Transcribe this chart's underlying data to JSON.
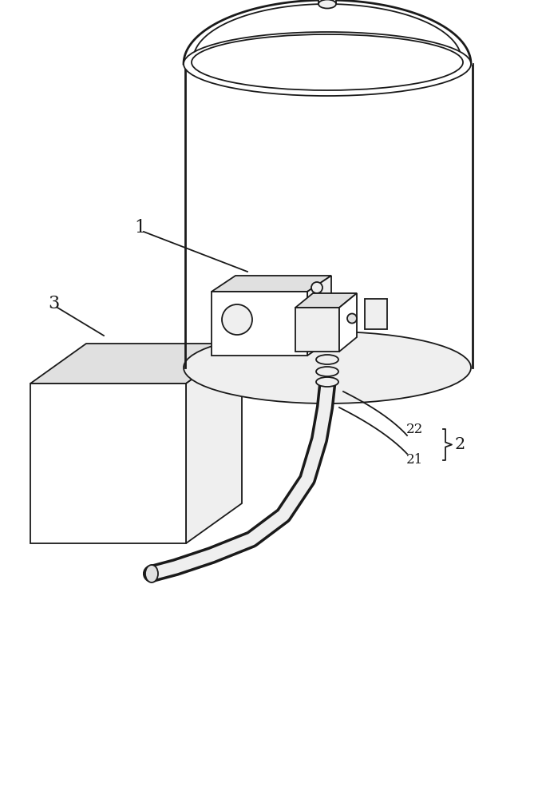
{
  "bg_color": "#ffffff",
  "line_color": "#1a1a1a",
  "fill_white": "#ffffff",
  "fill_light": "#efefef",
  "fill_mid": "#e0e0e0",
  "fill_dark": "#cccccc",
  "label_1": "1",
  "label_2": "2",
  "label_21": "21",
  "label_22": "22",
  "label_3": "3",
  "lw": 1.3,
  "lw_thick": 2.0
}
